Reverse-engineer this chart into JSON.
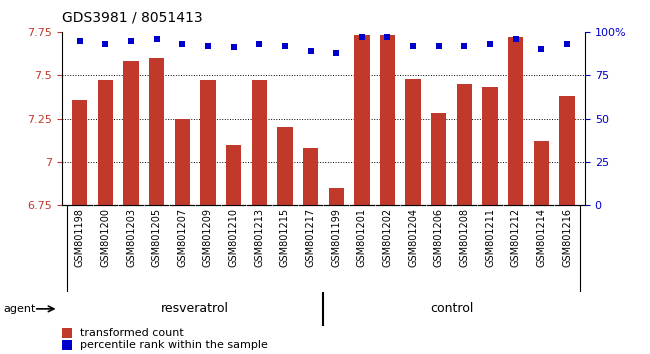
{
  "title": "GDS3981 / 8051413",
  "samples": [
    "GSM801198",
    "GSM801200",
    "GSM801203",
    "GSM801205",
    "GSM801207",
    "GSM801209",
    "GSM801210",
    "GSM801213",
    "GSM801215",
    "GSM801217",
    "GSM801199",
    "GSM801201",
    "GSM801202",
    "GSM801204",
    "GSM801206",
    "GSM801208",
    "GSM801211",
    "GSM801212",
    "GSM801214",
    "GSM801216"
  ],
  "bar_values": [
    7.36,
    7.47,
    7.58,
    7.6,
    7.25,
    7.47,
    7.1,
    7.47,
    7.2,
    7.08,
    6.85,
    7.73,
    7.73,
    7.48,
    7.28,
    7.45,
    7.43,
    7.72,
    7.12,
    7.38
  ],
  "percentile_values": [
    95,
    93,
    95,
    96,
    93,
    92,
    91,
    93,
    92,
    89,
    88,
    97,
    97,
    92,
    92,
    92,
    93,
    96,
    90,
    93
  ],
  "group_labels": [
    "resveratrol",
    "control"
  ],
  "group_sizes": [
    10,
    10
  ],
  "bar_color": "#C0392B",
  "percentile_color": "#0000CC",
  "ylim": [
    6.75,
    7.75
  ],
  "yticks": [
    6.75,
    7.0,
    7.25,
    7.5,
    7.75
  ],
  "ytick_labels": [
    "6.75",
    "7",
    "7.25",
    "7.5",
    "7.75"
  ],
  "right_yticks": [
    0,
    25,
    50,
    75,
    100
  ],
  "right_ytick_labels": [
    "0",
    "25",
    "50",
    "75",
    "100%"
  ],
  "plot_bg_color": "#FFFFFF",
  "xticklabel_bg": "#C8C8C8",
  "green_color": "#90EE90",
  "agent_label": "agent",
  "legend_bar_label": "transformed count",
  "legend_pct_label": "percentile rank within the sample",
  "grid_lines": [
    7.0,
    7.25,
    7.5
  ],
  "title_fontsize": 10,
  "tick_fontsize": 8,
  "xtick_fontsize": 7
}
